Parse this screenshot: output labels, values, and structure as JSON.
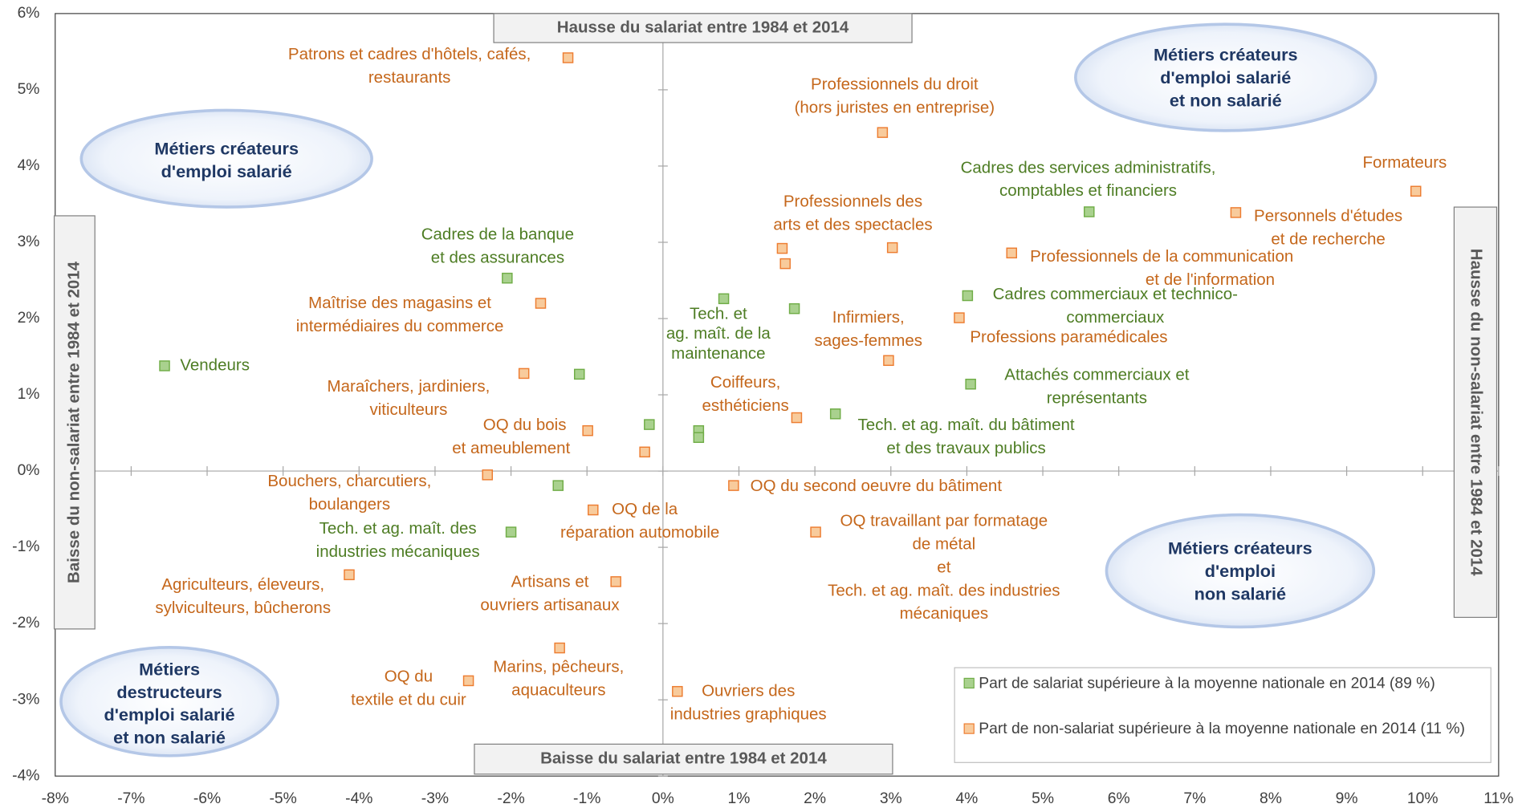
{
  "chart_data": {
    "type": "scatter",
    "xlim": [
      -8,
      11
    ],
    "xticks": [
      {
        "value": -8,
        "label": "-8%"
      },
      {
        "value": -7,
        "label": "-7%"
      },
      {
        "value": -6,
        "label": "-6%"
      },
      {
        "value": -5,
        "label": "-5%"
      },
      {
        "value": -4,
        "label": "-4%"
      },
      {
        "value": -3,
        "label": "-3%"
      },
      {
        "value": -2,
        "label": "-2%"
      },
      {
        "value": -1,
        "label": "-1%"
      },
      {
        "value": 0,
        "label": "0%"
      },
      {
        "value": 1,
        "label": "1%"
      },
      {
        "value": 2,
        "label": "2%"
      },
      {
        "value": 3,
        "label": "3%"
      },
      {
        "value": 4,
        "label": "4%"
      },
      {
        "value": 5,
        "label": "5%"
      },
      {
        "value": 6,
        "label": "6%"
      },
      {
        "value": 7,
        "label": "7%"
      },
      {
        "value": 8,
        "label": "8%"
      },
      {
        "value": 9,
        "label": "9%"
      },
      {
        "value": 10,
        "label": "10%"
      },
      {
        "value": 11,
        "label": "11%"
      }
    ],
    "ylim": [
      -4,
      6
    ],
    "yticks": [
      {
        "value": -4,
        "label": "-4%"
      },
      {
        "value": -3,
        "label": "-3%"
      },
      {
        "value": -2,
        "label": "-2%"
      },
      {
        "value": -1,
        "label": "-1%"
      },
      {
        "value": 0,
        "label": "0%"
      },
      {
        "value": 1,
        "label": "1%"
      },
      {
        "value": 2,
        "label": "2%"
      },
      {
        "value": 3,
        "label": "3%"
      },
      {
        "value": 4,
        "label": "4%"
      },
      {
        "value": 5,
        "label": "5%"
      },
      {
        "value": 6,
        "label": "6%"
      }
    ],
    "axis_notes": {
      "top": "Hausse du salariat entre 1984 et 2014",
      "bottom": "Baisse du salariat entre 1984 et 2014",
      "left": "Baisse du non-salariat entre 1984 et 2014",
      "right": "Hausse du non-salariat entre 1984 et 2014"
    },
    "quadrants": [
      {
        "lines": [
          "Métiers créateurs",
          "d'emploi salarié",
          "et non salarié"
        ]
      },
      {
        "lines": [
          "Métiers créateurs",
          "d'emploi salarié"
        ]
      },
      {
        "lines": [
          "Métiers créateurs",
          "d'emploi",
          "non salarié"
        ]
      },
      {
        "lines": [
          "Métiers",
          "destructeurs",
          "d'emploi salarié",
          "et non salarié"
        ]
      }
    ],
    "series": [
      {
        "name": "Part de salariat supérieure à la moyenne nationale en 2014 (89 %)",
        "color": "#70ad47",
        "points": [
          {
            "x": -6.56,
            "y": 1.38,
            "label": [
              "Vendeurs"
            ]
          },
          {
            "x": -2.05,
            "y": 2.53,
            "label": [
              "Cadres de la banque",
              "et des assurances"
            ]
          },
          {
            "x": -1.1,
            "y": 1.27,
            "label": null
          },
          {
            "x": -0.18,
            "y": 0.61,
            "label": null
          },
          {
            "x": 0.47,
            "y": 0.53,
            "label": null
          },
          {
            "x": 0.47,
            "y": 0.44,
            "label": null
          },
          {
            "x": 0.8,
            "y": 2.26,
            "label": [
              "Tech. et",
              "ag. maît. de la",
              "maintenance"
            ]
          },
          {
            "x": 1.73,
            "y": 2.13,
            "label": null
          },
          {
            "x": 2.27,
            "y": 0.75,
            "label": [
              "Tech. et ag. maît. du bâtiment",
              "et des travaux publics"
            ]
          },
          {
            "x": 5.61,
            "y": 3.4,
            "label": [
              "Cadres des services administratifs,",
              "comptables et financiers"
            ]
          },
          {
            "x": 4.01,
            "y": 2.3,
            "label": [
              "Cadres commerciaux et technico-",
              "commerciaux"
            ]
          },
          {
            "x": 4.05,
            "y": 1.14,
            "label": [
              "Attachés commerciaux et",
              "représentants"
            ]
          },
          {
            "x": -1.38,
            "y": -0.19,
            "label": null
          },
          {
            "x": -2.0,
            "y": -0.8,
            "label": [
              "Tech. et ag. maît. des",
              "industries mécaniques"
            ]
          }
        ]
      },
      {
        "name": "Part de non-salariat supérieure à la moyenne nationale en 2014 (11 %)",
        "color": "#ed7d31",
        "points": [
          {
            "x": -1.25,
            "y": 5.42,
            "label": [
              "Patrons et cadres d'hôtels, cafés,",
              "restaurants"
            ]
          },
          {
            "x": 2.89,
            "y": 4.44,
            "label": [
              "Professionnels du droit",
              "(hors juristes en entreprise)"
            ]
          },
          {
            "x": 9.91,
            "y": 3.67,
            "label": [
              "Formateurs"
            ]
          },
          {
            "x": 7.54,
            "y": 3.39,
            "label": [
              "Personnels d'études",
              "et de recherche"
            ]
          },
          {
            "x": 1.57,
            "y": 2.92,
            "label": [
              "Professionnels des",
              "arts et des spectacles"
            ]
          },
          {
            "x": 1.61,
            "y": 2.72,
            "label": null
          },
          {
            "x": 3.02,
            "y": 2.93,
            "label": null
          },
          {
            "x": 4.59,
            "y": 2.86,
            "label": [
              "Professionnels de la communication",
              "et de l'information"
            ]
          },
          {
            "x": 3.9,
            "y": 2.01,
            "label": [
              "Professions paramédicales"
            ]
          },
          {
            "x": 2.97,
            "y": 1.45,
            "label": [
              "Infirmiers,",
              "sages-femmes"
            ]
          },
          {
            "x": 1.76,
            "y": 0.7,
            "label": [
              "Coiffeurs,",
              "esthéticiens"
            ]
          },
          {
            "x": -1.61,
            "y": 2.2,
            "label": [
              "Maîtrise des magasins et",
              "intermédiaires du commerce"
            ]
          },
          {
            "x": -1.83,
            "y": 1.28,
            "label": [
              "Maraîchers, jardiniers,",
              "viticulteurs"
            ]
          },
          {
            "x": -0.99,
            "y": 0.53,
            "label": [
              "OQ du bois",
              "et ameublement"
            ]
          },
          {
            "x": -0.24,
            "y": 0.25,
            "label": null
          },
          {
            "x": -2.31,
            "y": -0.05,
            "label": [
              "Bouchers, charcutiers,",
              "boulangers"
            ]
          },
          {
            "x": 0.93,
            "y": -0.19,
            "label": [
              "OQ du second oeuvre du bâtiment"
            ]
          },
          {
            "x": -0.92,
            "y": -0.51,
            "label": [
              "OQ de la",
              "réparation automobile"
            ]
          },
          {
            "x": 2.01,
            "y": -0.8,
            "label": [
              "OQ travaillant par formatage",
              "de métal",
              "et",
              "Tech. et ag. maît. des industries",
              "mécaniques"
            ]
          },
          {
            "x": -4.13,
            "y": -1.36,
            "label": [
              "Agriculteurs, éleveurs,",
              "sylviculteurs, bûcherons"
            ]
          },
          {
            "x": -0.62,
            "y": -1.45,
            "label": [
              "Artisans et",
              "ouvriers artisanaux"
            ]
          },
          {
            "x": -1.36,
            "y": -2.32,
            "label": [
              "Marins, pêcheurs,",
              "aquaculteurs"
            ]
          },
          {
            "x": -2.56,
            "y": -2.75,
            "label": [
              "OQ du",
              "textile et du cuir"
            ]
          },
          {
            "x": 0.19,
            "y": -2.89,
            "label": [
              "Ouvriers des",
              "industries graphiques"
            ]
          }
        ]
      }
    ]
  }
}
